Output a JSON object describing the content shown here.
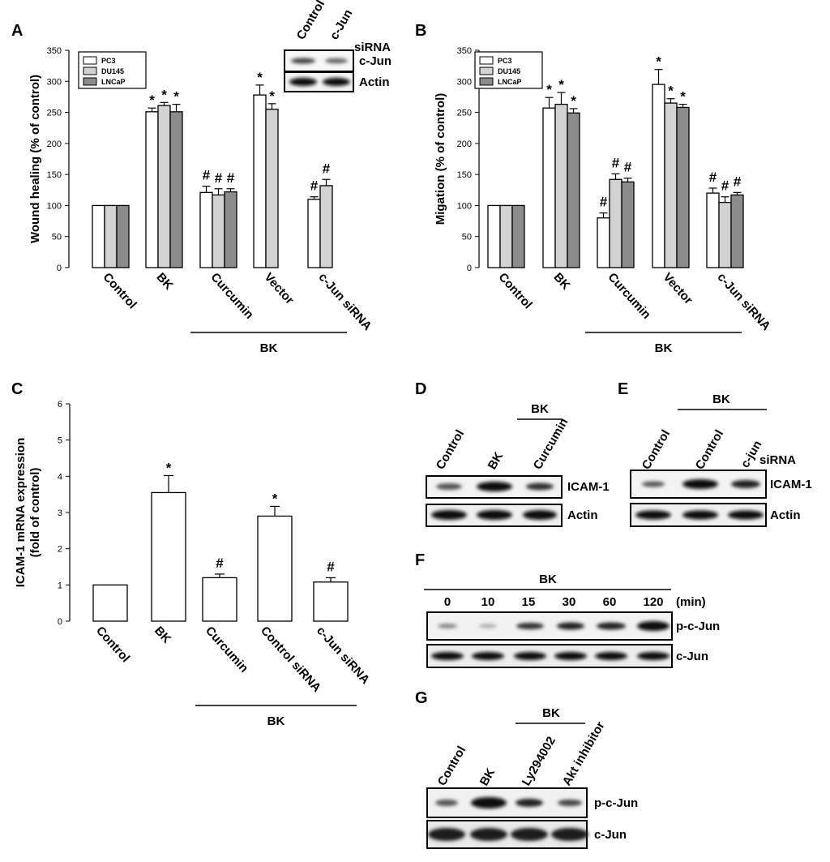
{
  "panels": {
    "A": "A",
    "B": "B",
    "C": "C",
    "D": "D",
    "E": "E",
    "F": "F",
    "G": "G"
  },
  "chart_data": [
    {
      "id": "A",
      "type": "bar",
      "ylabel": "Wound healing (% of control)",
      "ylim": [
        0,
        350
      ],
      "yticks": [
        0,
        50,
        100,
        150,
        200,
        250,
        300,
        350
      ],
      "categories": [
        "Control",
        "BK",
        "Curcumin",
        "Vector",
        "c-Jun siRNA"
      ],
      "bracket_label": "BK",
      "legend": {
        "placement": "top-left"
      },
      "series": [
        {
          "name": "PC3",
          "color": "#ffffff",
          "values": [
            100,
            251,
            121,
            278,
            110
          ],
          "errors": [
            0,
            6,
            10,
            16,
            4
          ],
          "marks": [
            "",
            "*",
            "#",
            "*",
            "#"
          ]
        },
        {
          "name": "DU145",
          "color": "#d2d2d2",
          "values": [
            100,
            261,
            117,
            255,
            132
          ],
          "errors": [
            0,
            5,
            10,
            9,
            10
          ],
          "marks": [
            "",
            "*",
            "#",
            "*",
            "#"
          ]
        },
        {
          "name": "LNCaP",
          "color": "#8c8c8c",
          "values": [
            100,
            251,
            122,
            null,
            null
          ],
          "errors": [
            0,
            12,
            5,
            0,
            0
          ],
          "marks": [
            "",
            "*",
            "#",
            "",
            ""
          ]
        }
      ]
    },
    {
      "id": "B",
      "type": "bar",
      "ylabel": "Migation (% of control)",
      "ylim": [
        0,
        350
      ],
      "yticks": [
        0,
        50,
        100,
        150,
        200,
        250,
        300,
        350
      ],
      "categories": [
        "Control",
        "BK",
        "Curcumin",
        "Vector",
        "c-Jun siRNA"
      ],
      "bracket_label": "BK",
      "legend": {
        "placement": "top-left"
      },
      "series": [
        {
          "name": "PC3",
          "color": "#ffffff",
          "values": [
            100,
            257,
            80,
            295,
            120
          ],
          "errors": [
            0,
            17,
            8,
            24,
            8
          ],
          "marks": [
            "",
            "*",
            "#",
            "*",
            "#"
          ]
        },
        {
          "name": "DU145",
          "color": "#d2d2d2",
          "values": [
            100,
            263,
            142,
            265,
            105
          ],
          "errors": [
            0,
            19,
            9,
            7,
            9
          ],
          "marks": [
            "",
            "*",
            "#",
            "*",
            "#"
          ]
        },
        {
          "name": "LNCaP",
          "color": "#8c8c8c",
          "values": [
            100,
            249,
            138,
            258,
            117
          ],
          "errors": [
            0,
            7,
            6,
            5,
            4
          ],
          "marks": [
            "",
            "*",
            "#",
            "*",
            "#"
          ]
        }
      ]
    },
    {
      "id": "C",
      "type": "bar",
      "ylabel_line1": "ICAM-1 mRNA expression",
      "ylabel_line2": "(fold of control)",
      "ylim": [
        0,
        6
      ],
      "yticks": [
        0,
        1,
        2,
        3,
        4,
        5,
        6
      ],
      "categories": [
        "Control",
        "BK",
        "Curcumin",
        "Control siRNA",
        "c-Jun siRNA"
      ],
      "bracket_label": "BK",
      "series": [
        {
          "values": [
            1.0,
            3.55,
            1.2,
            2.9,
            1.08
          ],
          "errors": [
            0,
            0.47,
            0.1,
            0.27,
            0.12
          ],
          "marks": [
            "",
            "*",
            "#",
            "*",
            "#"
          ]
        }
      ]
    }
  ],
  "blots": {
    "A_inset": {
      "lanes": [
        "Control",
        "c-Jun"
      ],
      "siRNA": "siRNA",
      "rows": [
        "c-Jun",
        "Actin"
      ]
    },
    "D": {
      "lanes": [
        "Control",
        "BK",
        "Curcumin"
      ],
      "group": "BK",
      "rows": [
        "ICAM-1",
        "Actin"
      ]
    },
    "E": {
      "lanes": [
        "Control",
        "Control",
        "c-jun"
      ],
      "group": "BK",
      "siRNA": "siRNA",
      "rows": [
        "ICAM-1",
        "Actin"
      ]
    },
    "F": {
      "group": "BK",
      "times": [
        "0",
        "10",
        "15",
        "30",
        "60",
        "120"
      ],
      "unit": "(min)",
      "rows": [
        "p-c-Jun",
        "c-Jun"
      ]
    },
    "G": {
      "lanes": [
        "Control",
        "BK",
        "Ly294002",
        "Akt inhibitor"
      ],
      "group": "BK",
      "rows": [
        "p-c-Jun",
        "c-Jun"
      ]
    }
  }
}
